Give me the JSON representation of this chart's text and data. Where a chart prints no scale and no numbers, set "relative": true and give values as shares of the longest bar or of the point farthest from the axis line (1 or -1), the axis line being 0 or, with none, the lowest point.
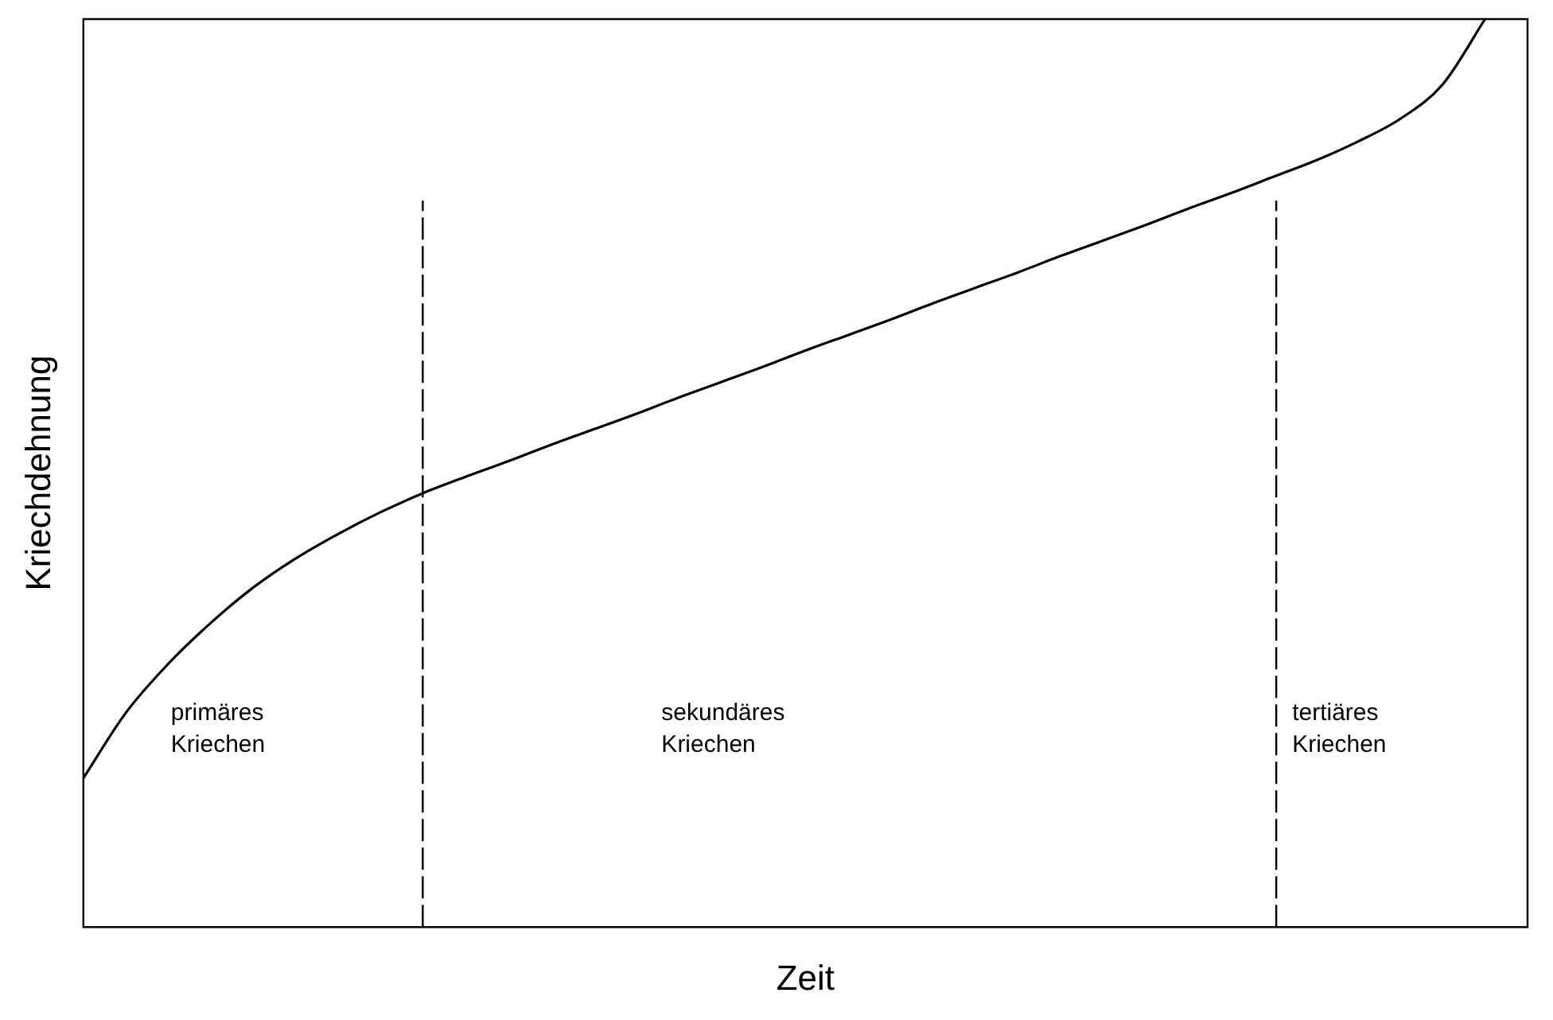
{
  "chart_data": {
    "type": "line",
    "relative": true,
    "xlabel": "Zeit",
    "ylabel": "Kriechdehnung",
    "color": "#000000",
    "marker": "none",
    "line_style": "solid",
    "grid": false,
    "legend": false,
    "categories": [
      null,
      null,
      null,
      null,
      null,
      null,
      null,
      null,
      null,
      null,
      null,
      null,
      null,
      null,
      null,
      null,
      null,
      null,
      null,
      null,
      null,
      null,
      null,
      null,
      null,
      null,
      null,
      null,
      null,
      null,
      null,
      null,
      null,
      null,
      null
    ],
    "values": [
      0.164,
      0.236,
      0.29,
      0.335,
      0.374,
      0.406,
      0.433,
      0.457,
      0.478,
      0.496,
      0.513,
      0.531,
      0.548,
      0.565,
      0.583,
      0.6,
      0.617,
      0.635,
      0.652,
      0.669,
      0.687,
      0.704,
      0.721,
      0.739,
      0.756,
      0.773,
      0.791,
      0.808,
      0.826,
      0.844,
      0.865,
      0.89,
      0.928,
      1,
      null
    ],
    "annotations": [
      "primäres\nKriechen",
      "sekundäres\nKriechen",
      "tertiäres\nKriechen"
    ]
  }
}
